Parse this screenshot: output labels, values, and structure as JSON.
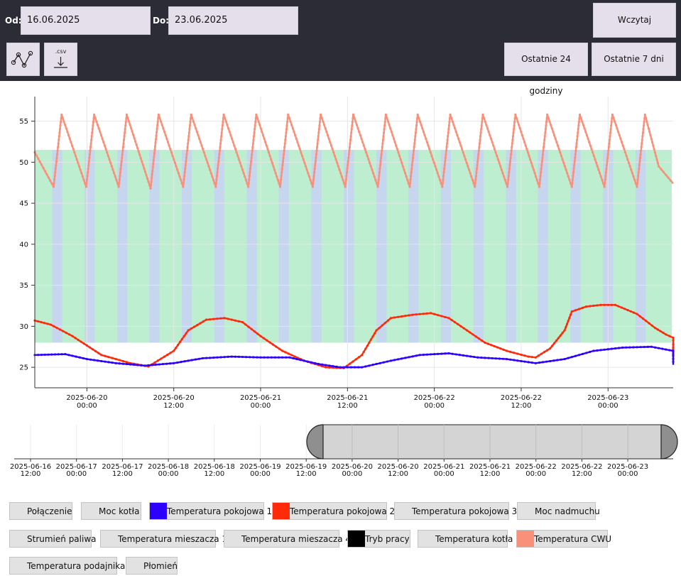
{
  "toolbar": {
    "from_label": "Od:",
    "from_value": "16.06.2025",
    "to_label": "Do:",
    "to_value": "23.06.2025",
    "load_label": "Wczytaj",
    "last24_label": "Ostatnie 24 godziny",
    "last7_label": "Ostatnie 7 dni",
    "csv_label": ".csv"
  },
  "chart_data": {
    "type": "line",
    "title": "",
    "xlabel": "",
    "ylabel": "",
    "x_ticks": [
      [
        "2025-06-20",
        "00:00"
      ],
      [
        "2025-06-20",
        "12:00"
      ],
      [
        "2025-06-21",
        "00:00"
      ],
      [
        "2025-06-21",
        "12:00"
      ],
      [
        "2025-06-22",
        "00:00"
      ],
      [
        "2025-06-22",
        "12:00"
      ],
      [
        "2025-06-23",
        "00:00"
      ]
    ],
    "x_tick_hours": [
      0,
      12,
      24,
      36,
      48,
      60,
      72
    ],
    "xlim_hours": [
      -7.2,
      81
    ],
    "y_ticks": [
      "25",
      "30",
      "35",
      "40",
      "45",
      "50",
      "55"
    ],
    "ylim": [
      22.5,
      58
    ],
    "grid": true,
    "series": [
      {
        "name": "Temperatura CWU",
        "color": "#f9907a",
        "values": [
          [
            -7.2,
            51.2
          ],
          [
            -4.6,
            47.0
          ],
          [
            -3.5,
            55.8
          ],
          [
            -0.1,
            47.0
          ],
          [
            1,
            55.8
          ],
          [
            4.4,
            47.0
          ],
          [
            5.5,
            55.8
          ],
          [
            8.8,
            46.8
          ],
          [
            9.9,
            55.8
          ],
          [
            13.3,
            47.0
          ],
          [
            14.4,
            55.8
          ],
          [
            17.8,
            47.0
          ],
          [
            18.9,
            55.8
          ],
          [
            22.3,
            47.0
          ],
          [
            23.4,
            55.8
          ],
          [
            26.7,
            47.0
          ],
          [
            27.8,
            55.8
          ],
          [
            31.2,
            47.0
          ],
          [
            32.3,
            55.8
          ],
          [
            35.7,
            47.0
          ],
          [
            36.8,
            55.8
          ],
          [
            40.2,
            47.0
          ],
          [
            41.3,
            55.8
          ],
          [
            44.6,
            47.0
          ],
          [
            45.7,
            55.8
          ],
          [
            49.1,
            47.0
          ],
          [
            50.2,
            55.8
          ],
          [
            53.6,
            47.0
          ],
          [
            54.7,
            55.8
          ],
          [
            58.1,
            47.0
          ],
          [
            59.2,
            55.8
          ],
          [
            62.5,
            47.0
          ],
          [
            63.6,
            55.8
          ],
          [
            67.0,
            47.0
          ],
          [
            68.1,
            55.8
          ],
          [
            71.5,
            47.0
          ],
          [
            72.6,
            55.8
          ],
          [
            76,
            47.0
          ],
          [
            77.1,
            55.8
          ],
          [
            79,
            49.5
          ],
          [
            81,
            47.4
          ]
        ]
      },
      {
        "name": "Temperatura pokojowa 2",
        "color": "#ff2a0a",
        "values": [
          [
            -7.2,
            30.7
          ],
          [
            -5,
            30.2
          ],
          [
            -2,
            28.8
          ],
          [
            2,
            26.5
          ],
          [
            6,
            25.5
          ],
          [
            8.5,
            25.1
          ],
          [
            12,
            27.0
          ],
          [
            14,
            29.5
          ],
          [
            16.5,
            30.8
          ],
          [
            19,
            31.0
          ],
          [
            21.5,
            30.5
          ],
          [
            24,
            28.8
          ],
          [
            27,
            27.0
          ],
          [
            30,
            25.8
          ],
          [
            33,
            25.0
          ],
          [
            35.5,
            24.9
          ],
          [
            38,
            26.5
          ],
          [
            40,
            29.5
          ],
          [
            42,
            31.0
          ],
          [
            45,
            31.4
          ],
          [
            47.5,
            31.6
          ],
          [
            50,
            31.0
          ],
          [
            52.5,
            29.5
          ],
          [
            55,
            28.0
          ],
          [
            58,
            27.0
          ],
          [
            61,
            26.3
          ],
          [
            62,
            26.2
          ],
          [
            64,
            27.3
          ],
          [
            66,
            29.5
          ],
          [
            67,
            31.8
          ],
          [
            69,
            32.4
          ],
          [
            71,
            32.6
          ],
          [
            73,
            32.6
          ],
          [
            76,
            31.5
          ],
          [
            78.5,
            29.8
          ],
          [
            80,
            29.0
          ],
          [
            81.5,
            28.6
          ],
          [
            83,
            28.3
          ],
          [
            85,
            27.8
          ],
          [
            86.5,
            27.4
          ],
          [
            87.5,
            27.1
          ],
          [
            88.5,
            27.2
          ],
          [
            89.5,
            26.5
          ]
        ]
      },
      {
        "name": "Temperatura pokojowa 1",
        "color": "#2e00ff",
        "values": [
          [
            -7.2,
            26.5
          ],
          [
            -3,
            26.6
          ],
          [
            0,
            26.0
          ],
          [
            4,
            25.5
          ],
          [
            8,
            25.2
          ],
          [
            12,
            25.5
          ],
          [
            16,
            26.1
          ],
          [
            20,
            26.3
          ],
          [
            24,
            26.2
          ],
          [
            28,
            26.2
          ],
          [
            32,
            25.4
          ],
          [
            35,
            25.0
          ],
          [
            38,
            25.0
          ],
          [
            42,
            25.8
          ],
          [
            46,
            26.5
          ],
          [
            50,
            26.7
          ],
          [
            54,
            26.2
          ],
          [
            58,
            26.0
          ],
          [
            62,
            25.5
          ],
          [
            66,
            26.0
          ],
          [
            70,
            27.0
          ],
          [
            74,
            27.4
          ],
          [
            78,
            27.5
          ],
          [
            82,
            27.0
          ],
          [
            86,
            26.6
          ],
          [
            88,
            26.4
          ],
          [
            89.5,
            25.3
          ]
        ]
      }
    ],
    "bands": [
      {
        "color": "#bdeed0",
        "y": [
          28.0,
          51.5
        ]
      }
    ]
  },
  "navigator": {
    "ticks": [
      [
        "2025-06-16",
        "12:00"
      ],
      [
        "2025-06-17",
        "00:00"
      ],
      [
        "2025-06-17",
        "12:00"
      ],
      [
        "2025-06-18",
        "00:00"
      ],
      [
        "2025-06-18",
        "12:00"
      ],
      [
        "2025-06-19",
        "00:00"
      ],
      [
        "2025-06-19",
        "12:00"
      ],
      [
        "2025-06-20",
        "00:00"
      ],
      [
        "2025-06-20",
        "12:00"
      ],
      [
        "2025-06-21",
        "00:00"
      ],
      [
        "2025-06-21",
        "12:00"
      ],
      [
        "2025-06-22",
        "00:00"
      ],
      [
        "2025-06-22",
        "12:00"
      ],
      [
        "2025-06-23",
        "00:00"
      ]
    ]
  },
  "legend": [
    {
      "label": "Połączenie",
      "color": "#e2e2e2"
    },
    {
      "label": "Moc kotła",
      "color": "#e2e2e2"
    },
    {
      "label": "Temperatura pokojowa 1",
      "color": "#2e00ff"
    },
    {
      "label": "Temperatura pokojowa 2",
      "color": "#ff2a0a"
    },
    {
      "label": "Temperatura pokojowa 3",
      "color": "#e2e2e2"
    },
    {
      "label": "Moc nadmuchu",
      "color": "#e2e2e2"
    },
    {
      "label": "Strumień paliwa",
      "color": "#e2e2e2"
    },
    {
      "label": "Temperatura mieszacza 1",
      "color": "#e2e2e2"
    },
    {
      "label": "Temperatura mieszacza 4",
      "color": "#e2e2e2"
    },
    {
      "label": "Tryb pracy",
      "color": "#000000"
    },
    {
      "label": "Temperatura kotła",
      "color": "#e2e2e2"
    },
    {
      "label": "Temperatura CWU",
      "color": "#f9907a"
    },
    {
      "label": "Temperatura podajnika",
      "color": "#e2e2e2"
    },
    {
      "label": "Płomień",
      "color": "#e2e2e2"
    }
  ]
}
